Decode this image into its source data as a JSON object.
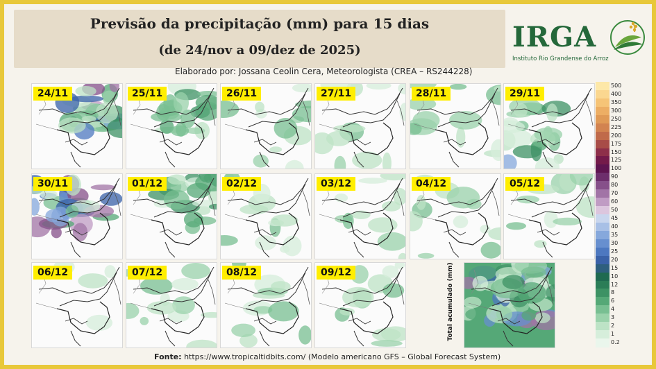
{
  "header": {
    "title": "Previsão da precipitação (mm) para 15 dias",
    "subtitle": "(de 24/nov a 09/dez de 2025)",
    "author": "Elaborado por: Jossana Ceolin Cera, Meteorologista (CREA – RS244228)"
  },
  "logo": {
    "text": "IRGA",
    "subtitle": "Instituto Rio Grandense do Arroz"
  },
  "maps": [
    {
      "date": "24/11",
      "intensity": "high-north"
    },
    {
      "date": "25/11",
      "intensity": "medium-north"
    },
    {
      "date": "26/11",
      "intensity": "low"
    },
    {
      "date": "27/11",
      "intensity": "low"
    },
    {
      "date": "28/11",
      "intensity": "low"
    },
    {
      "date": "29/11",
      "intensity": "medium-west"
    },
    {
      "date": "30/11",
      "intensity": "high-band"
    },
    {
      "date": "01/12",
      "intensity": "medium-north"
    },
    {
      "date": "02/12",
      "intensity": "low"
    },
    {
      "date": "03/12",
      "intensity": "low"
    },
    {
      "date": "04/12",
      "intensity": "low"
    },
    {
      "date": "05/12",
      "intensity": "low"
    },
    {
      "date": "06/12",
      "intensity": "very-low"
    },
    {
      "date": "07/12",
      "intensity": "low"
    },
    {
      "date": "08/12",
      "intensity": "low"
    },
    {
      "date": "09/12",
      "intensity": "low"
    }
  ],
  "total": {
    "label": "Total acumulado (mm)"
  },
  "legend": [
    {
      "value": "500",
      "color": "#fde8a8"
    },
    {
      "value": "400",
      "color": "#fbd790"
    },
    {
      "value": "350",
      "color": "#f6c477"
    },
    {
      "value": "300",
      "color": "#edae64"
    },
    {
      "value": "250",
      "color": "#e09a56"
    },
    {
      "value": "225",
      "color": "#d28350"
    },
    {
      "value": "200",
      "color": "#c06a4a"
    },
    {
      "value": "175",
      "color": "#a84c48"
    },
    {
      "value": "150",
      "color": "#8e2f4a"
    },
    {
      "value": "125",
      "color": "#741a4a"
    },
    {
      "value": "100",
      "color": "#5e1450"
    },
    {
      "value": "90",
      "color": "#6d2e6c"
    },
    {
      "value": "80",
      "color": "#86508a"
    },
    {
      "value": "70",
      "color": "#a174a6"
    },
    {
      "value": "60",
      "color": "#c09cc4"
    },
    {
      "value": "50",
      "color": "#dcc6de"
    },
    {
      "value": "45",
      "color": "#c9d6ee"
    },
    {
      "value": "40",
      "color": "#a8c0e6"
    },
    {
      "value": "35",
      "color": "#86a8dc"
    },
    {
      "value": "30",
      "color": "#678fcf"
    },
    {
      "value": "25",
      "color": "#4d78c0"
    },
    {
      "value": "20",
      "color": "#3a62a8"
    },
    {
      "value": "15",
      "color": "#2e5f7e"
    },
    {
      "value": "10",
      "color": "#1f6a50"
    },
    {
      "value": "12",
      "color": "#2b7d57"
    },
    {
      "value": "8",
      "color": "#3d9264"
    },
    {
      "value": "6",
      "color": "#55a877"
    },
    {
      "value": "4",
      "color": "#78bf92"
    },
    {
      "value": "3",
      "color": "#9ad2ab"
    },
    {
      "value": "2",
      "color": "#bde3c6"
    },
    {
      "value": "1",
      "color": "#d6eedb"
    },
    {
      "value": "0.2",
      "color": "#eaf6ec"
    }
  ],
  "footer": {
    "source_label": "Fonte:",
    "source_text": "https://www.tropicaltidbits.com/ (Modelo americano GFS – Global Forecast System)"
  }
}
